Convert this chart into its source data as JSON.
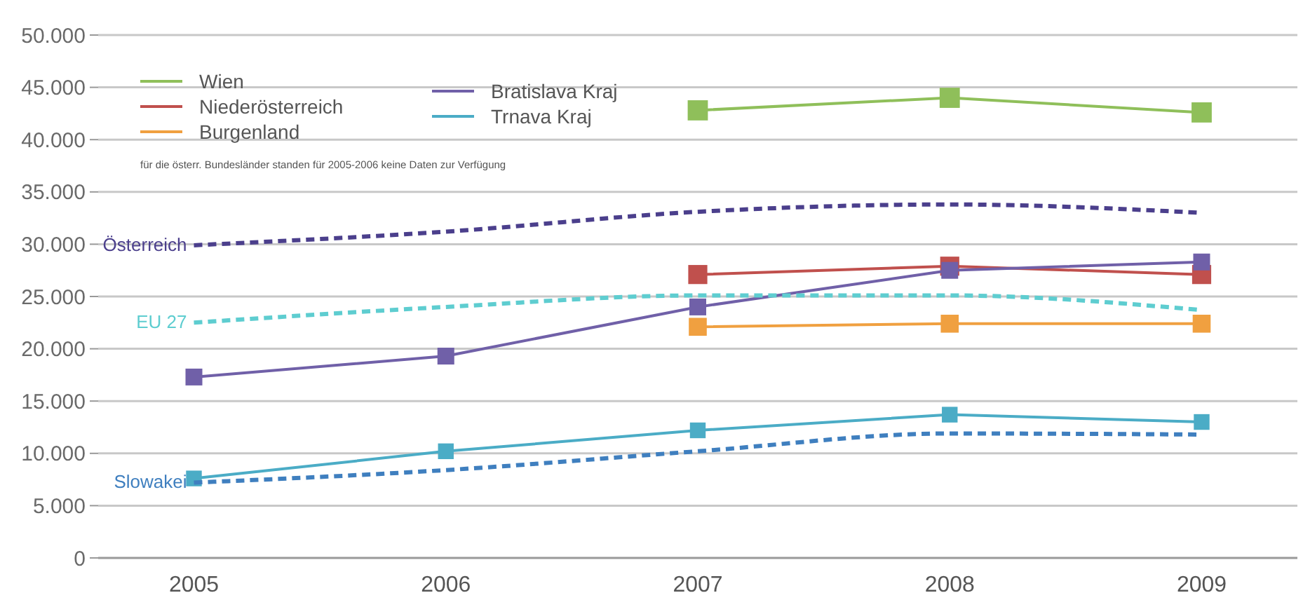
{
  "chart_data": {
    "type": "line",
    "categories": [
      "2005",
      "2006",
      "2007",
      "2008",
      "2009"
    ],
    "series": [
      {
        "name": "Wien",
        "color": "#8fbf5a",
        "marker": "square",
        "line_style": "solid",
        "values": [
          null,
          null,
          42800,
          44000,
          42600
        ]
      },
      {
        "name": "Niederösterreich",
        "color": "#c0504d",
        "marker": "square",
        "line_style": "solid",
        "values": [
          null,
          null,
          27100,
          27900,
          27100
        ]
      },
      {
        "name": "Burgenland",
        "color": "#f0a040",
        "marker": "square",
        "line_style": "solid",
        "values": [
          null,
          null,
          22100,
          22400,
          22400
        ]
      },
      {
        "name": "Bratislava Kraj",
        "color": "#7060a8",
        "marker": "square",
        "line_style": "solid",
        "values": [
          17300,
          19300,
          24000,
          27500,
          28300
        ]
      },
      {
        "name": "Trnava Kraj",
        "color": "#4bacc6",
        "marker": "square",
        "line_style": "solid",
        "values": [
          7600,
          10200,
          12200,
          13700,
          13000
        ]
      },
      {
        "name": "Österreich",
        "color": "#4b3f8c",
        "marker": "none",
        "line_style": "dashed",
        "values": [
          29900,
          31200,
          33100,
          33800,
          33000
        ]
      },
      {
        "name": "EU 27",
        "color": "#5ecdd0",
        "marker": "none",
        "line_style": "dashed",
        "values": [
          22500,
          24000,
          25100,
          25100,
          23700
        ]
      },
      {
        "name": "Slowakei",
        "color": "#3f7fbf",
        "marker": "none",
        "line_style": "dashed",
        "values": [
          7200,
          8400,
          10200,
          11900,
          11800
        ]
      }
    ],
    "ylim": [
      0,
      50000
    ],
    "yticks": [
      {
        "value": 0,
        "label": "0"
      },
      {
        "value": 5000,
        "label": "5.000"
      },
      {
        "value": 10000,
        "label": "10.000"
      },
      {
        "value": 15000,
        "label": "15.000"
      },
      {
        "value": 20000,
        "label": "20.000"
      },
      {
        "value": 25000,
        "label": "25.000"
      },
      {
        "value": 30000,
        "label": "30.000"
      },
      {
        "value": 35000,
        "label": "35.000"
      },
      {
        "value": 40000,
        "label": "40.000"
      },
      {
        "value": 45000,
        "label": "45.000"
      },
      {
        "value": 50000,
        "label": "50.000"
      }
    ],
    "grid": "y",
    "legend": "top left",
    "annotations": [
      "für die österr. Bundesländer standen für 2005-2006 keine Daten zur Verfügung"
    ]
  }
}
